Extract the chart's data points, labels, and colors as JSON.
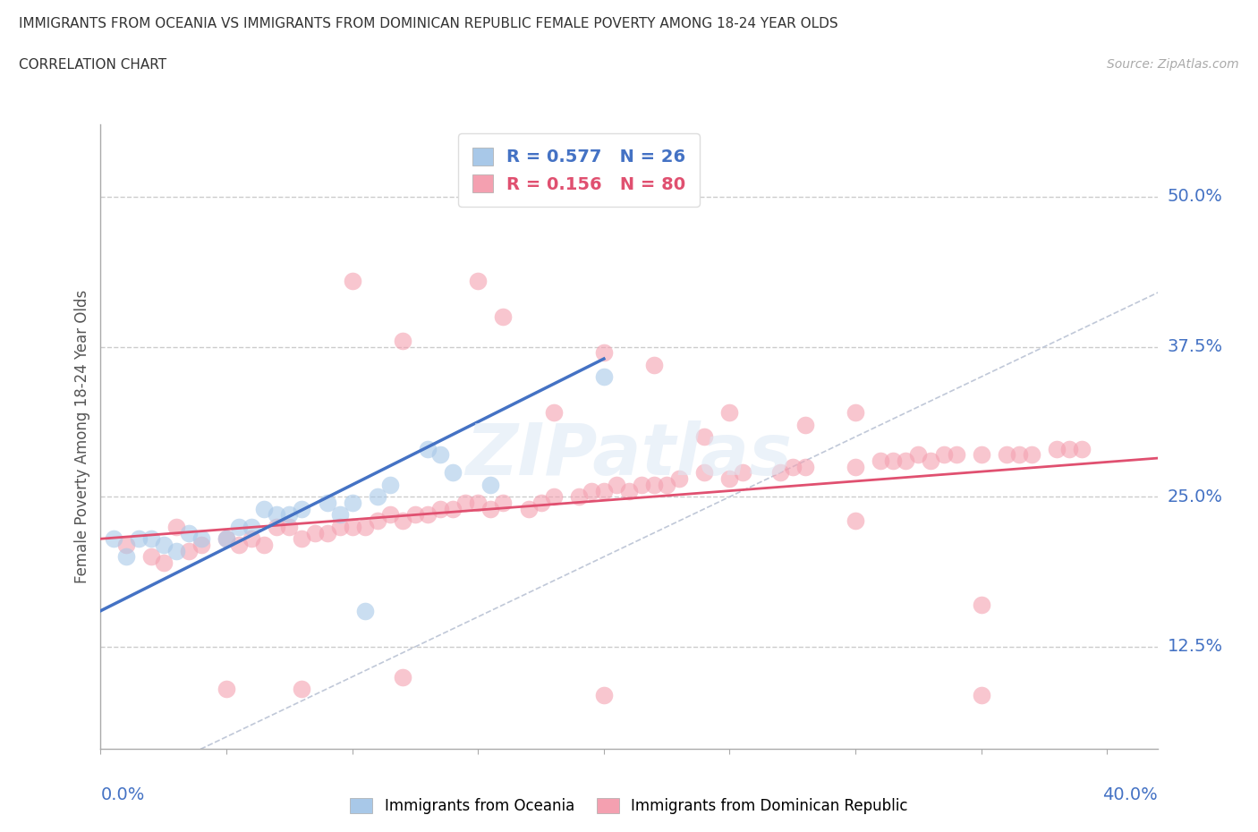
{
  "title_line1": "IMMIGRANTS FROM OCEANIA VS IMMIGRANTS FROM DOMINICAN REPUBLIC FEMALE POVERTY AMONG 18-24 YEAR OLDS",
  "title_line2": "CORRELATION CHART",
  "source": "Source: ZipAtlas.com",
  "ylabel": "Female Poverty Among 18-24 Year Olds",
  "xlim": [
    0.0,
    0.42
  ],
  "ylim": [
    0.04,
    0.56
  ],
  "color_oceania": "#a8c8e8",
  "color_dr": "#f4a0b0",
  "color_oceania_line": "#4472c4",
  "color_dr_line": "#e05070",
  "color_diagonal": "#c0c8d8",
  "watermark": "ZIPatlas",
  "oceania_x": [
    0.005,
    0.01,
    0.015,
    0.02,
    0.025,
    0.03,
    0.035,
    0.04,
    0.05,
    0.055,
    0.06,
    0.065,
    0.07,
    0.075,
    0.08,
    0.09,
    0.095,
    0.1,
    0.105,
    0.11,
    0.115,
    0.13,
    0.135,
    0.14,
    0.155,
    0.2
  ],
  "oceania_y": [
    0.215,
    0.2,
    0.215,
    0.215,
    0.21,
    0.205,
    0.22,
    0.215,
    0.215,
    0.225,
    0.225,
    0.24,
    0.235,
    0.235,
    0.24,
    0.245,
    0.235,
    0.245,
    0.155,
    0.25,
    0.26,
    0.29,
    0.285,
    0.27,
    0.26,
    0.35
  ],
  "dr_x": [
    0.01,
    0.02,
    0.025,
    0.03,
    0.035,
    0.04,
    0.05,
    0.055,
    0.06,
    0.065,
    0.07,
    0.075,
    0.08,
    0.085,
    0.09,
    0.095,
    0.1,
    0.105,
    0.11,
    0.115,
    0.12,
    0.125,
    0.13,
    0.135,
    0.14,
    0.145,
    0.15,
    0.155,
    0.16,
    0.17,
    0.175,
    0.18,
    0.19,
    0.195,
    0.2,
    0.205,
    0.21,
    0.215,
    0.22,
    0.225,
    0.23,
    0.24,
    0.25,
    0.255,
    0.27,
    0.275,
    0.28,
    0.3,
    0.31,
    0.315,
    0.32,
    0.325,
    0.33,
    0.335,
    0.34,
    0.35,
    0.36,
    0.365,
    0.37,
    0.38,
    0.385,
    0.39,
    0.15,
    0.16,
    0.2,
    0.1,
    0.12,
    0.25,
    0.28,
    0.3,
    0.35,
    0.22,
    0.18,
    0.24,
    0.3,
    0.05,
    0.08,
    0.12,
    0.2,
    0.35
  ],
  "dr_y": [
    0.21,
    0.2,
    0.195,
    0.225,
    0.205,
    0.21,
    0.215,
    0.21,
    0.215,
    0.21,
    0.225,
    0.225,
    0.215,
    0.22,
    0.22,
    0.225,
    0.225,
    0.225,
    0.23,
    0.235,
    0.23,
    0.235,
    0.235,
    0.24,
    0.24,
    0.245,
    0.245,
    0.24,
    0.245,
    0.24,
    0.245,
    0.25,
    0.25,
    0.255,
    0.255,
    0.26,
    0.255,
    0.26,
    0.26,
    0.26,
    0.265,
    0.27,
    0.265,
    0.27,
    0.27,
    0.275,
    0.275,
    0.275,
    0.28,
    0.28,
    0.28,
    0.285,
    0.28,
    0.285,
    0.285,
    0.285,
    0.285,
    0.285,
    0.285,
    0.29,
    0.29,
    0.29,
    0.43,
    0.4,
    0.37,
    0.43,
    0.38,
    0.32,
    0.31,
    0.32,
    0.16,
    0.36,
    0.32,
    0.3,
    0.23,
    0.09,
    0.09,
    0.1,
    0.085,
    0.085
  ]
}
